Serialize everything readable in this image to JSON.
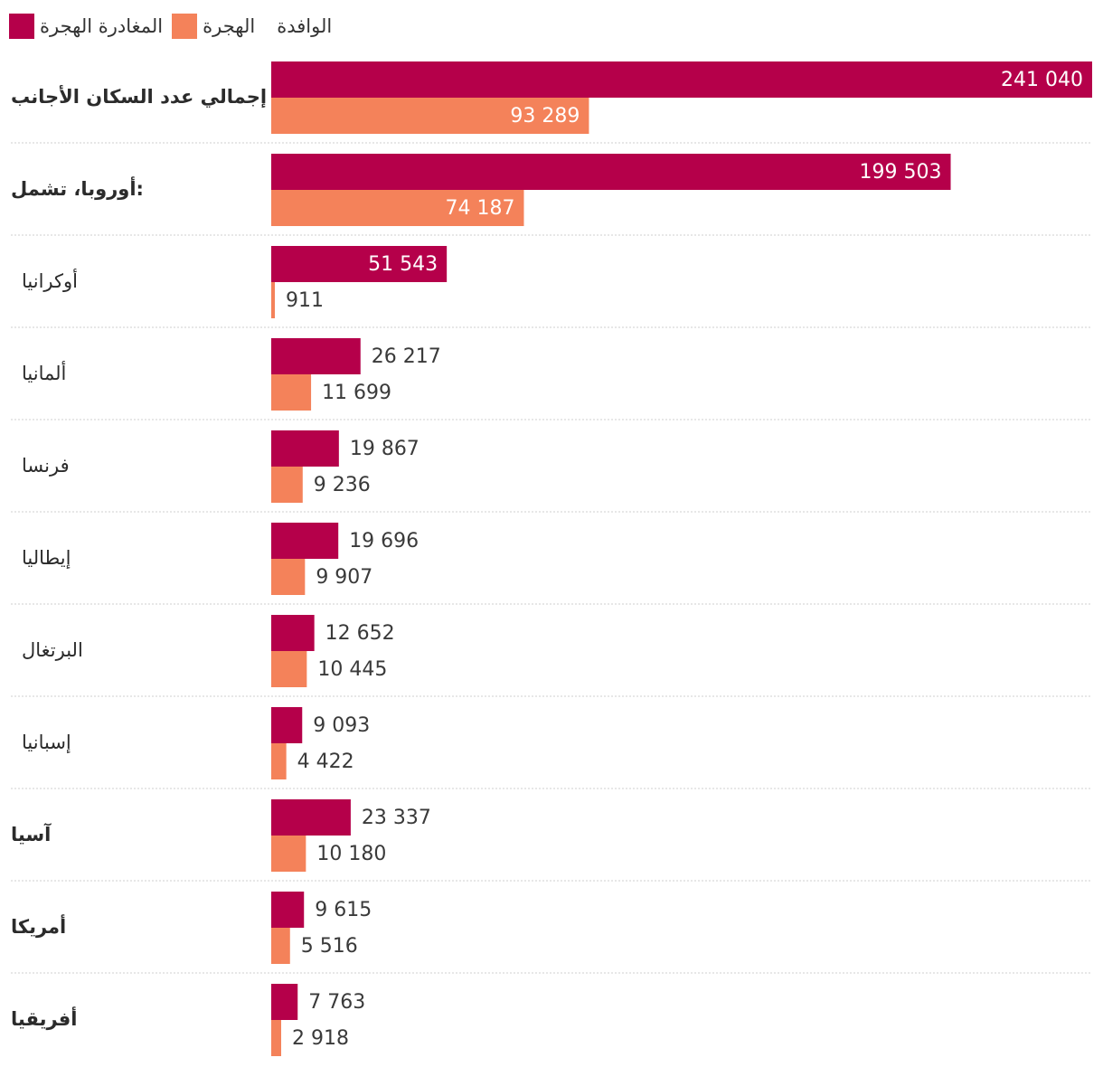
{
  "legend": {
    "series_a": "المغادرة الهجرة",
    "series_b": "الهجرة",
    "extra": "الوافدة"
  },
  "colors": {
    "series_a": "#b5004a",
    "series_b": "#f4825a",
    "divider": "#cfcfcf"
  },
  "chart_data": {
    "type": "bar",
    "orientation": "horizontal",
    "xlim": [
      0,
      241040
    ],
    "grid": false,
    "legend_position": "top-left",
    "categories": [
      "إجمالي عدد السكان الأجانب",
      "أوروبا، تشمل:",
      "أوكرانيا",
      "ألمانيا",
      "فرنسا",
      "إيطاليا",
      "البرتغال",
      "إسبانيا",
      "آسيا",
      "أمريكا",
      "أفريقيا"
    ],
    "label_level": [
      "main",
      "main",
      "sub",
      "sub",
      "sub",
      "sub",
      "sub",
      "sub",
      "main",
      "main",
      "main"
    ],
    "series": [
      {
        "name": "المغادرة الهجرة",
        "values": [
          241040,
          199503,
          51543,
          26217,
          19867,
          19696,
          12652,
          9093,
          23337,
          9615,
          7763
        ]
      },
      {
        "name": "الهجرة",
        "values": [
          93289,
          74187,
          911,
          11699,
          9236,
          9907,
          10445,
          4422,
          10180,
          5516,
          2918
        ]
      }
    ]
  }
}
